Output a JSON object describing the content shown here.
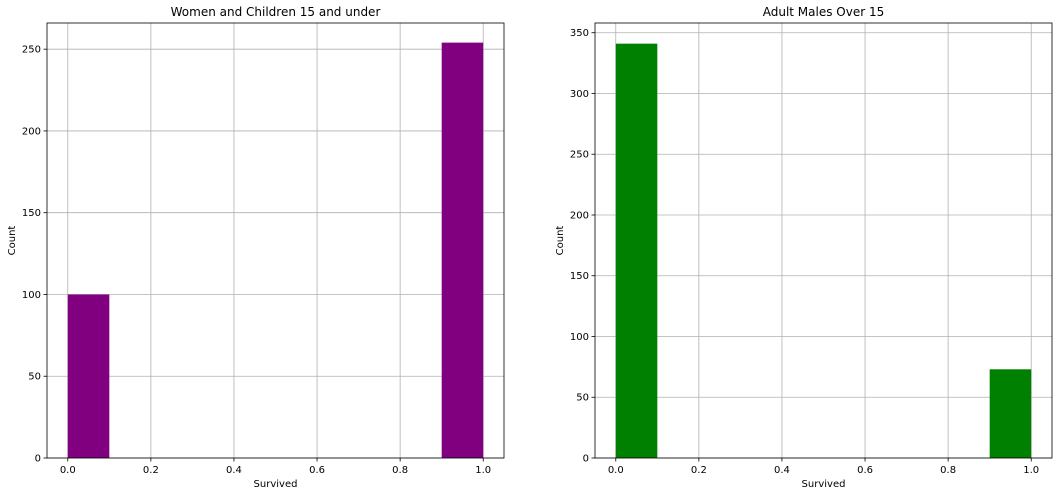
{
  "chart_data": [
    {
      "type": "bar",
      "title": "Women and Children 15 and under",
      "xlabel": "Survived",
      "ylabel": "Count",
      "xlim": [
        -0.05,
        1.05
      ],
      "ylim": [
        0,
        266
      ],
      "xticks": [
        0.0,
        0.2,
        0.4,
        0.6,
        0.8,
        1.0
      ],
      "xtick_labels": [
        "0.0",
        "0.2",
        "0.4",
        "0.6",
        "0.8",
        "1.0"
      ],
      "yticks": [
        0,
        50,
        100,
        150,
        200,
        250
      ],
      "ytick_labels": [
        "0",
        "50",
        "100",
        "150",
        "200",
        "250"
      ],
      "grid": true,
      "color": "#800080",
      "bars": [
        {
          "x_start": 0.0,
          "x_end": 0.1,
          "value": 100
        },
        {
          "x_start": 0.9,
          "x_end": 1.0,
          "value": 254
        }
      ]
    },
    {
      "type": "bar",
      "title": "Adult Males Over 15",
      "xlabel": "Survived",
      "ylabel": "Count",
      "xlim": [
        -0.05,
        1.05
      ],
      "ylim": [
        0,
        358
      ],
      "xticks": [
        0.0,
        0.2,
        0.4,
        0.6,
        0.8,
        1.0
      ],
      "xtick_labels": [
        "0.0",
        "0.2",
        "0.4",
        "0.6",
        "0.8",
        "1.0"
      ],
      "yticks": [
        0,
        50,
        100,
        150,
        200,
        250,
        300,
        350
      ],
      "ytick_labels": [
        "0",
        "50",
        "100",
        "150",
        "200",
        "250",
        "300",
        "350"
      ],
      "grid": true,
      "color": "#008000",
      "bars": [
        {
          "x_start": 0.0,
          "x_end": 0.1,
          "value": 341
        },
        {
          "x_start": 0.9,
          "x_end": 1.0,
          "value": 73
        }
      ]
    }
  ]
}
